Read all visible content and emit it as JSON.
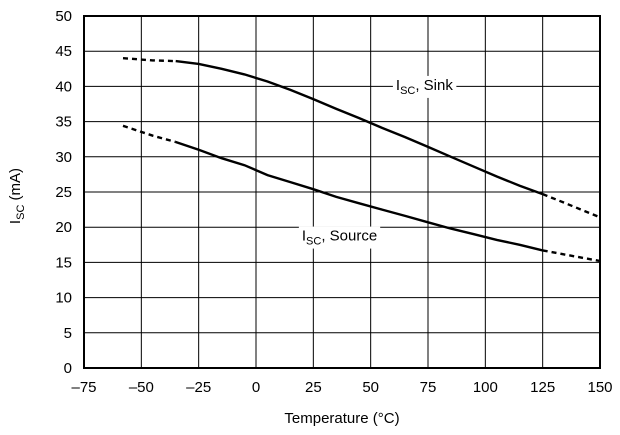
{
  "chart_data": {
    "type": "line",
    "title": "",
    "xlabel": "Temperature (°C)",
    "ylabel": {
      "main": "I",
      "sub": "SC",
      "rest": " (mA)"
    },
    "xlim": [
      -75,
      150
    ],
    "ylim": [
      0,
      50
    ],
    "xticks": [
      "–75",
      "–50",
      "–25",
      "0",
      "25",
      "50",
      "75",
      "100",
      "125",
      "150"
    ],
    "yticks": [
      "0",
      "5",
      "10",
      "15",
      "20",
      "25",
      "30",
      "35",
      "40",
      "45",
      "50"
    ],
    "grid": true,
    "series": [
      {
        "name": {
          "main": "I",
          "sub": "SC",
          "rest": ", Sink"
        },
        "x": [
          -58,
          -45,
          -35,
          -25,
          -15,
          -5,
          5,
          15,
          25,
          35,
          45,
          55,
          65,
          75,
          85,
          95,
          105,
          115,
          125,
          135,
          150
        ],
        "y": [
          44.0,
          43.7,
          43.6,
          43.2,
          42.5,
          41.7,
          40.7,
          39.5,
          38.2,
          36.8,
          35.5,
          34.1,
          32.8,
          31.4,
          30.0,
          28.6,
          27.2,
          25.9,
          24.7,
          23.4,
          21.4
        ],
        "solid_range": [
          -35,
          125
        ]
      },
      {
        "name": {
          "main": "I",
          "sub": "SC",
          "rest": ", Source"
        },
        "x": [
          -58,
          -45,
          -35,
          -25,
          -15,
          -5,
          5,
          15,
          25,
          35,
          45,
          55,
          65,
          75,
          85,
          95,
          105,
          115,
          125,
          135,
          150
        ],
        "y": [
          34.4,
          33.0,
          32.1,
          31.0,
          29.8,
          28.8,
          27.4,
          26.4,
          25.4,
          24.3,
          23.4,
          22.5,
          21.6,
          20.7,
          19.8,
          19.0,
          18.2,
          17.5,
          16.7,
          16.1,
          15.2
        ],
        "solid_range": [
          -35,
          125
        ]
      }
    ]
  }
}
